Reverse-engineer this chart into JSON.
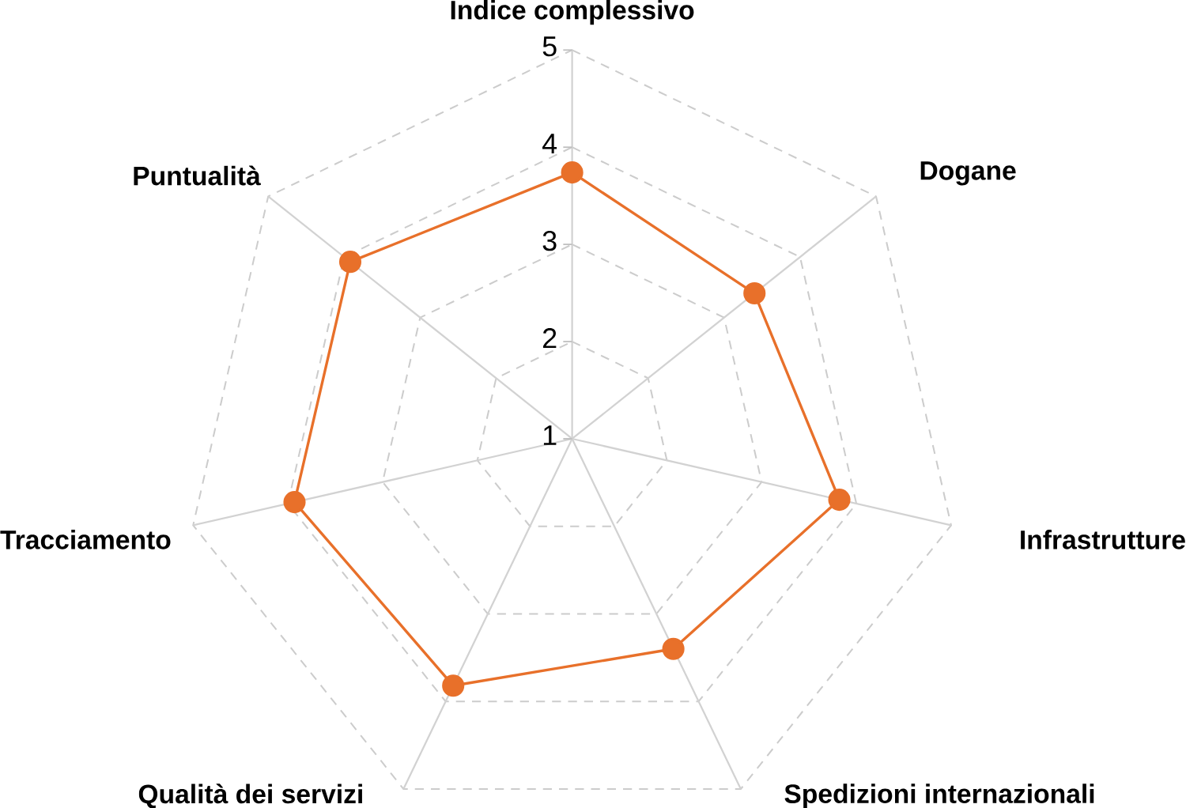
{
  "chart_data": {
    "type": "radar",
    "categories": [
      "Indice complessivo",
      "Dogane",
      "Infrastrutture",
      "Spedizioni internazionali",
      "Qualità dei servizi",
      "Tracciamento",
      "Puntualità"
    ],
    "series": [
      {
        "color": "#e8702a",
        "values": [
          3.74,
          3.4,
          3.82,
          3.4,
          3.82,
          3.93,
          3.92
        ]
      }
    ],
    "ylim": [
      1,
      5
    ],
    "yticks": [
      1,
      2,
      3,
      4,
      5
    ],
    "grid": true,
    "marker": "circle",
    "line_style": "solid"
  }
}
